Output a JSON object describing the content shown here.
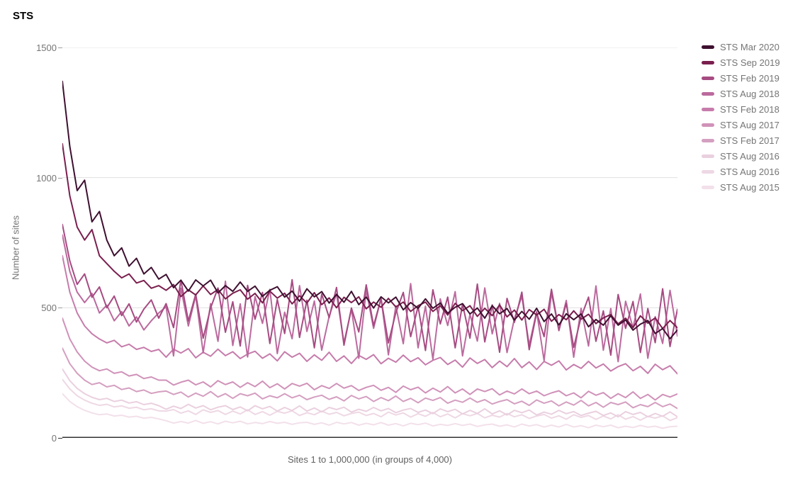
{
  "title": "STS",
  "y_axis": {
    "label": "Number of sites",
    "ticks": [
      "1500",
      "1000",
      "500",
      "0"
    ],
    "grid_color": "#e0e0e0",
    "baseline_color": "#333333"
  },
  "x_axis": {
    "label": "Sites 1 to 1,000,000 (in groups of 4,000)"
  },
  "chart_data": {
    "type": "line",
    "title": "STS",
    "xlabel": "Sites 1 to 1,000,000 (in groups of 4,000)",
    "ylabel": "Number of sites",
    "ylim": [
      0,
      1500
    ],
    "x_sites_start": 1,
    "x_sites_step": 12000,
    "legend_position": "right",
    "grid": "horizontal",
    "series": [
      {
        "name": "STS Mar 2020",
        "color": "#3e1030",
        "values": [
          1370,
          1120,
          950,
          990,
          830,
          870,
          760,
          700,
          730,
          660,
          690,
          630,
          655,
          610,
          628,
          577,
          606,
          564,
          607,
          584,
          606,
          557,
          585,
          563,
          599,
          563,
          583,
          544,
          567,
          581,
          541,
          564,
          525,
          573,
          542,
          562,
          518,
          551,
          521,
          563,
          512,
          541,
          499,
          542,
          519,
          541,
          492,
          520,
          498,
          534,
          498,
          518,
          479,
          502,
          516,
          476,
          499,
          460,
          508,
          477,
          497,
          453,
          486,
          456,
          498,
          447,
          476,
          434,
          477,
          454,
          476,
          427,
          455,
          433,
          469,
          433,
          453,
          414,
          437,
          451,
          401,
          420,
          381,
          415
        ]
      },
      {
        "name": "STS Sep 2019",
        "color": "#7a1f4e",
        "values": [
          1130,
          930,
          810,
          760,
          800,
          700,
          670,
          640,
          615,
          630,
          595,
          605,
          575,
          585,
          567,
          589,
          543,
          569,
          549,
          584,
          551,
          570,
          534,
          556,
          569,
          533,
          555,
          519,
          564,
          537,
          556,
          515,
          546,
          518,
          558,
          512,
          538,
          500,
          540,
          520,
          542,
          496,
          522,
          502,
          536,
          503,
          522,
          486,
          508,
          522,
          486,
          508,
          472,
          517,
          489,
          508,
          467,
          498,
          470,
          511,
          465,
          491,
          453,
          493,
          472,
          494,
          448,
          474,
          454,
          488,
          456,
          475,
          439,
          461,
          474,
          438,
          460,
          424,
          469,
          441,
          461,
          420,
          451,
          423
        ]
      },
      {
        "name": "STS Feb 2019",
        "color": "#a64b82",
        "values": [
          820,
          680,
          590,
          630,
          540,
          580,
          500,
          545,
          470,
          515,
          445,
          495,
          530,
          460,
          516,
          424,
          606,
          449,
          552,
          383,
          499,
          576,
          406,
          523,
          353,
          586,
          456,
          559,
          363,
          532,
          401,
          608,
          386,
          529,
          346,
          553,
          462,
          578,
          356,
          499,
          407,
          588,
          431,
          535,
          365,
          481,
          559,
          389,
          505,
          336,
          569,
          438,
          541,
          346,
          514,
          383,
          591,
          369,
          511,
          329,
          536,
          444,
          560,
          339,
          481,
          389,
          571,
          414,
          517,
          348,
          464,
          541,
          371,
          488,
          318,
          551,
          421,
          524,
          328,
          497,
          366,
          573,
          351,
          494
        ]
      },
      {
        "name": "STS Aug 2018",
        "color": "#bb6a9e",
        "values": [
          780,
          640,
          560,
          520,
          555,
          480,
          510,
          450,
          485,
          430,
          465,
          415,
          450,
          480,
          504,
          315,
          575,
          430,
          546,
          327,
          516,
          371,
          602,
          355,
          515,
          311,
          543,
          440,
          571,
          324,
          483,
          381,
          585,
          409,
          526,
          337,
          467,
          554,
          365,
          495,
          306,
          567,
          421,
          537,
          319,
          507,
          362,
          593,
          346,
          506,
          302,
          534,
          432,
          562,
          315,
          475,
          372,
          576,
          400,
          517,
          328,
          458,
          545,
          356,
          486,
          297,
          558,
          412,
          528,
          310,
          498,
          353,
          584,
          337,
          497,
          293,
          525,
          423,
          553,
          306,
          466,
          363,
          567,
          391
        ]
      },
      {
        "name": "STS Feb 2018",
        "color": "#c67cab",
        "values": [
          700,
          560,
          480,
          430,
          400,
          380,
          365,
          375,
          350,
          360,
          340,
          348,
          332,
          340,
          310,
          341,
          326,
          343,
          308,
          329,
          314,
          341,
          316,
          331,
          305,
          322,
          333,
          306,
          323,
          296,
          331,
          310,
          325,
          294,
          319,
          298,
          329,
          294,
          315,
          286,
          317,
          302,
          320,
          285,
          306,
          291,
          318,
          293,
          308,
          281,
          298,
          309,
          282,
          299,
          272,
          307,
          286,
          301,
          270,
          295,
          274,
          305,
          270,
          292,
          263,
          294,
          279,
          296,
          261,
          282,
          267,
          294,
          269,
          284,
          257,
          274,
          285,
          258,
          275,
          248,
          283,
          262,
          277,
          246
        ]
      },
      {
        "name": "STS Aug 2017",
        "color": "#d092b9",
        "values": [
          460,
          380,
          330,
          295,
          272,
          258,
          265,
          248,
          254,
          238,
          244,
          228,
          234,
          222,
          222,
          203,
          214,
          222,
          204,
          215,
          196,
          220,
          205,
          215,
          194,
          212,
          197,
          218,
          193,
          208,
          188,
          209,
          199,
          210,
          185,
          201,
          190,
          209,
          191,
          201,
          182,
          194,
          202,
          183,
          194,
          175,
          199,
          185,
          195,
          173,
          191,
          176,
          197,
          173,
          188,
          167,
          188,
          178,
          189,
          165,
          180,
          169,
          188,
          170,
          180,
          162,
          173,
          181,
          162,
          173,
          154,
          179,
          164,
          174,
          152,
          170,
          155,
          177,
          152,
          167,
          146,
          167,
          157,
          169
        ]
      },
      {
        "name": "STS Feb 2017",
        "color": "#d49fc0",
        "values": [
          345,
          285,
          248,
          222,
          205,
          212,
          196,
          202,
          186,
          192,
          178,
          184,
          171,
          177,
          180,
          167,
          176,
          157,
          172,
          160,
          178,
          157,
          170,
          152,
          170,
          162,
          172,
          150,
          162,
          154,
          170,
          154,
          164,
          147,
          157,
          164,
          148,
          158,
          142,
          163,
          150,
          159,
          140,
          155,
          143,
          161,
          140,
          152,
          135,
          153,
          144,
          155,
          133,
          145,
          137,
          153,
          137,
          147,
          130,
          140,
          147,
          131,
          141,
          125,
          146,
          133,
          142,
          123,
          138,
          126,
          144,
          123,
          136,
          118,
          136,
          128,
          138,
          116,
          128,
          120,
          136,
          120,
          130,
          113
        ]
      },
      {
        "name": "STS Aug 2016",
        "color": "#ead0df",
        "values": [
          265,
          220,
          190,
          170,
          156,
          147,
          152,
          140,
          145,
          134,
          139,
          128,
          133,
          124,
          110,
          122,
          113,
          129,
          115,
          124,
          108,
          118,
          124,
          109,
          119,
          104,
          124,
          112,
          121,
          103,
          117,
          105,
          123,
          103,
          115,
          100,
          117,
          109,
          118,
          99,
          110,
          102,
          117,
          104,
          113,
          97,
          107,
          113,
          98,
          107,
          93,
          112,
          101,
          110,
          92,
          106,
          94,
          112,
          92,
          104,
          88,
          106,
          97,
          107,
          88,
          99,
          91,
          106,
          93,
          101,
          86,
          95,
          102,
          86,
          96,
          81,
          101,
          90,
          98,
          81,
          94,
          83,
          100,
          81
        ]
      },
      {
        "name": "STS Aug 2016",
        "color": "#eed8e4",
        "values": [
          225,
          188,
          162,
          145,
          133,
          125,
          129,
          119,
          123,
          114,
          118,
          108,
          112,
          104,
          103,
          109,
          95,
          104,
          90,
          108,
          98,
          105,
          90,
          103,
          92,
          108,
          90,
          101,
          87,
          102,
          95,
          104,
          86,
          97,
          89,
          103,
          91,
          98,
          85,
          94,
          99,
          86,
          94,
          81,
          99,
          88,
          96,
          80,
          93,
          83,
          98,
          81,
          92,
          77,
          93,
          85,
          94,
          77,
          87,
          80,
          94,
          81,
          89,
          75,
          84,
          90,
          76,
          85,
          72,
          89,
          79,
          86,
          71,
          84,
          73,
          89,
          72,
          82,
          68,
          83,
          76,
          85,
          67,
          78
        ]
      },
      {
        "name": "STS Aug 2015",
        "color": "#f2e0ea",
        "values": [
          170,
          140,
          120,
          106,
          96,
          89,
          92,
          84,
          87,
          80,
          83,
          76,
          79,
          73,
          66,
          57,
          63,
          57,
          67,
          56,
          62,
          54,
          64,
          58,
          64,
          54,
          59,
          55,
          63,
          56,
          60,
          52,
          58,
          60,
          52,
          58,
          49,
          60,
          54,
          59,
          49,
          56,
          50,
          59,
          49,
          55,
          46,
          56,
          51,
          57,
          46,
          52,
          48,
          55,
          48,
          53,
          44,
          50,
          53,
          45,
          50,
          42,
          53,
          46,
          51,
          42,
          49,
          42,
          52,
          42,
          47,
          39,
          49,
          43,
          49,
          39,
          45,
          40,
          48,
          41,
          45,
          37,
          43,
          45
        ]
      }
    ]
  }
}
